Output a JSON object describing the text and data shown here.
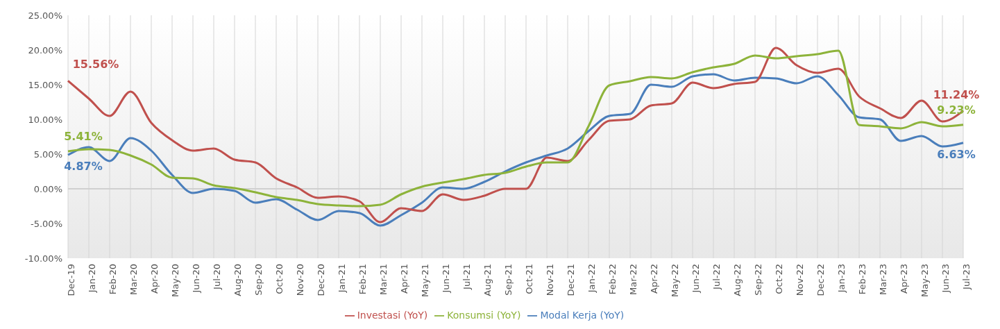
{
  "chart_data": {
    "type": "line",
    "categories": [
      "Dec-19",
      "Jan-20",
      "Feb-20",
      "Mar-20",
      "Apr-20",
      "May-20",
      "Jun-20",
      "Jul-20",
      "Aug-20",
      "Sep-20",
      "Oct-20",
      "Nov-20",
      "Dec-20",
      "Jan-21",
      "Feb-21",
      "Mar-21",
      "Apr-21",
      "May-21",
      "Jun-21",
      "Jul-21",
      "Aug-21",
      "Sep-21",
      "Oct-21",
      "Nov-21",
      "Dec-21",
      "Jan-22",
      "Feb-22",
      "Mar-22",
      "Apr-22",
      "May-22",
      "Jun-22",
      "Jul-22",
      "Aug-22",
      "Sep-22",
      "Oct-22",
      "Nov-22",
      "Dec-22",
      "Jan-23",
      "Feb-23",
      "Mar-23",
      "Apr-23",
      "May-23",
      "Jun-23",
      "Jul-23"
    ],
    "series": [
      {
        "name": "Modal Kerja (YoY)",
        "color": "#4a7ebb",
        "values": [
          4.87,
          6.0,
          4.0,
          7.3,
          5.5,
          2.0,
          -0.6,
          0.0,
          -0.3,
          -2.0,
          -1.5,
          -3.0,
          -4.5,
          -3.2,
          -3.5,
          -5.3,
          -3.8,
          -2.0,
          0.2,
          0.0,
          1.0,
          2.5,
          3.8,
          4.8,
          5.8,
          8.3,
          10.5,
          10.8,
          15.0,
          14.7,
          16.2,
          16.5,
          15.6,
          16.0,
          15.9,
          15.2,
          16.2,
          13.5,
          10.3,
          10.0,
          6.9,
          7.6,
          6.1,
          6.63
        ],
        "value_labels": [
          "4.87%",
          null,
          null,
          null,
          null,
          null,
          null,
          null,
          null,
          null,
          null,
          null,
          null,
          null,
          null,
          null,
          null,
          null,
          null,
          null,
          null,
          null,
          null,
          null,
          null,
          null,
          null,
          null,
          null,
          null,
          null,
          null,
          null,
          null,
          null,
          null,
          null,
          null,
          null,
          null,
          null,
          null,
          null,
          "6.63%"
        ]
      },
      {
        "name": "Investasi (YoY)",
        "color": "#c0504d",
        "values": [
          15.56,
          13.0,
          10.5,
          14.0,
          9.5,
          7.0,
          5.5,
          5.8,
          4.2,
          3.8,
          1.5,
          0.2,
          -1.3,
          -1.1,
          -1.8,
          -4.8,
          -2.8,
          -3.2,
          -0.8,
          -1.6,
          -1.0,
          0.0,
          0.0,
          4.5,
          4.0,
          7.0,
          9.8,
          10.0,
          12.0,
          12.3,
          15.3,
          14.5,
          15.1,
          15.4,
          20.3,
          17.8,
          16.7,
          17.3,
          13.3,
          11.6,
          10.2,
          12.7,
          9.7,
          11.24
        ],
        "value_labels": [
          "15.56%",
          null,
          null,
          null,
          null,
          null,
          null,
          null,
          null,
          null,
          null,
          null,
          null,
          null,
          null,
          null,
          null,
          null,
          null,
          null,
          null,
          null,
          null,
          null,
          null,
          null,
          null,
          null,
          null,
          null,
          null,
          null,
          null,
          null,
          null,
          null,
          null,
          null,
          null,
          null,
          null,
          null,
          null,
          "11.24%"
        ]
      },
      {
        "name": "Konsumsi (YoY)",
        "color": "#8db33a",
        "values": [
          5.41,
          5.7,
          5.6,
          4.8,
          3.5,
          1.6,
          1.5,
          0.5,
          0.1,
          -0.5,
          -1.2,
          -1.6,
          -2.2,
          -2.4,
          -2.5,
          -2.3,
          -0.8,
          0.3,
          0.9,
          1.4,
          2.0,
          2.3,
          3.2,
          3.8,
          3.8,
          9.0,
          14.9,
          15.5,
          16.1,
          15.9,
          16.8,
          17.5,
          18.0,
          19.2,
          18.8,
          19.1,
          19.4,
          19.9,
          9.2,
          9.0,
          8.7,
          9.6,
          9.0,
          9.23
        ],
        "value_labels": [
          "5.41%",
          null,
          null,
          null,
          null,
          null,
          null,
          null,
          null,
          null,
          null,
          null,
          null,
          null,
          null,
          null,
          null,
          null,
          null,
          null,
          null,
          null,
          null,
          null,
          null,
          null,
          null,
          null,
          null,
          null,
          null,
          null,
          null,
          null,
          null,
          null,
          null,
          null,
          null,
          null,
          null,
          null,
          null,
          "9.23%"
        ]
      }
    ],
    "ylim": [
      -10,
      25
    ],
    "yticks": [
      {
        "value": -10,
        "label": "-10.00%"
      },
      {
        "value": -5,
        "label": "-5.00%"
      },
      {
        "value": 0,
        "label": "0.00%"
      },
      {
        "value": 5,
        "label": "5.00%"
      },
      {
        "value": 10,
        "label": "10.00%"
      },
      {
        "value": 15,
        "label": "15.00%"
      },
      {
        "value": 20,
        "label": "20.00%"
      },
      {
        "value": 25,
        "label": "25.00%"
      }
    ],
    "grid": "x",
    "legend": "bottom",
    "marker": "none",
    "line_style": "solid"
  }
}
